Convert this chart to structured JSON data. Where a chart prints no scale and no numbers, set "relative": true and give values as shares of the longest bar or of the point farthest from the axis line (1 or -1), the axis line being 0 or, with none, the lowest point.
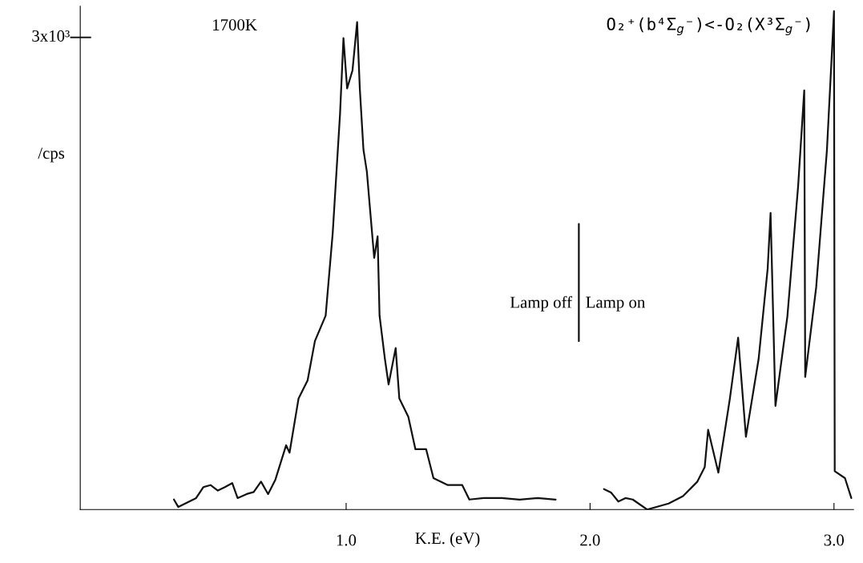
{
  "chart_data": {
    "type": "line",
    "title": "O₂⁺(b⁴Σ$_{g}$⁻)<-O₂(X³Σ$_{g}$⁻)",
    "xlabel": "K.E. (eV)",
    "ylabel": "/cps",
    "relative": true,
    "annotations": [
      "3x10³",
      "1700K",
      {
        "text": "Lamp off",
        "x": 1.954,
        "y": 0.413
      },
      {
        "text": "Lamp on",
        "x": 1.954,
        "y": 0.413
      }
    ],
    "series": [
      {
        "color": "#111111",
        "x": [
          0.294,
          0.312,
          0.385,
          0.415,
          0.444,
          0.474,
          0.503,
          0.533,
          0.555,
          0.592,
          0.621,
          0.651,
          0.68,
          0.71,
          0.754,
          0.768,
          0.805,
          0.842,
          0.872,
          0.916,
          0.945,
          0.975,
          0.989,
          1.004,
          1.026,
          1.045,
          1.056,
          1.071,
          1.085,
          1.1,
          1.115,
          1.129,
          1.137,
          1.159,
          1.174,
          1.203,
          1.218,
          1.255,
          1.284,
          1.328,
          1.358,
          1.417,
          1.476,
          1.505,
          1.564,
          1.638,
          1.711,
          1.785,
          1.859,
          1.95,
          2.057,
          2.086,
          2.116,
          2.145,
          2.175,
          2.234,
          2.322,
          2.381,
          2.44,
          2.47,
          2.484,
          2.526,
          2.573,
          2.607,
          2.639,
          2.691,
          2.728,
          2.74,
          2.76,
          2.809,
          2.853,
          2.878,
          2.882,
          2.927,
          2.971,
          3.0,
          3.003,
          3.045,
          3.071
        ],
        "values": [
          0.02,
          0.005,
          0.023,
          0.045,
          0.049,
          0.038,
          0.045,
          0.053,
          0.023,
          0.031,
          0.035,
          0.056,
          0.031,
          0.06,
          0.129,
          0.114,
          0.223,
          0.259,
          0.338,
          0.389,
          0.555,
          0.794,
          0.946,
          0.845,
          0.881,
          0.978,
          0.845,
          0.722,
          0.678,
          0.591,
          0.505,
          0.548,
          0.389,
          0.302,
          0.251,
          0.324,
          0.223,
          0.186,
          0.121,
          0.121,
          0.063,
          0.049,
          0.049,
          0.02,
          0.023,
          0.023,
          0.02,
          0.023,
          0.02,
          null,
          0.041,
          0.034,
          0.016,
          0.023,
          0.02,
          0,
          0.012,
          0.027,
          0.056,
          0.085,
          0.16,
          0.074,
          0.222,
          0.345,
          0.146,
          0.302,
          0.483,
          0.595,
          0.208,
          0.388,
          0.649,
          0.841,
          0.266,
          0.446,
          0.721,
          1,
          0.077,
          0.063,
          0.023
        ]
      },
      {
        "color": "#111111",
        "x": [
          1.954,
          1.954
        ],
        "values": [
          0.573,
          0.338
        ]
      }
    ],
    "xlim": [
      -0.09,
      3.08
    ],
    "xticks": [
      {
        "value": 1,
        "label": "1.0"
      },
      {
        "value": 2,
        "label": "2.0"
      },
      {
        "value": 3,
        "label": "3.0"
      }
    ],
    "grid": false,
    "legend": false,
    "marker": "none",
    "line_style": "solid"
  }
}
